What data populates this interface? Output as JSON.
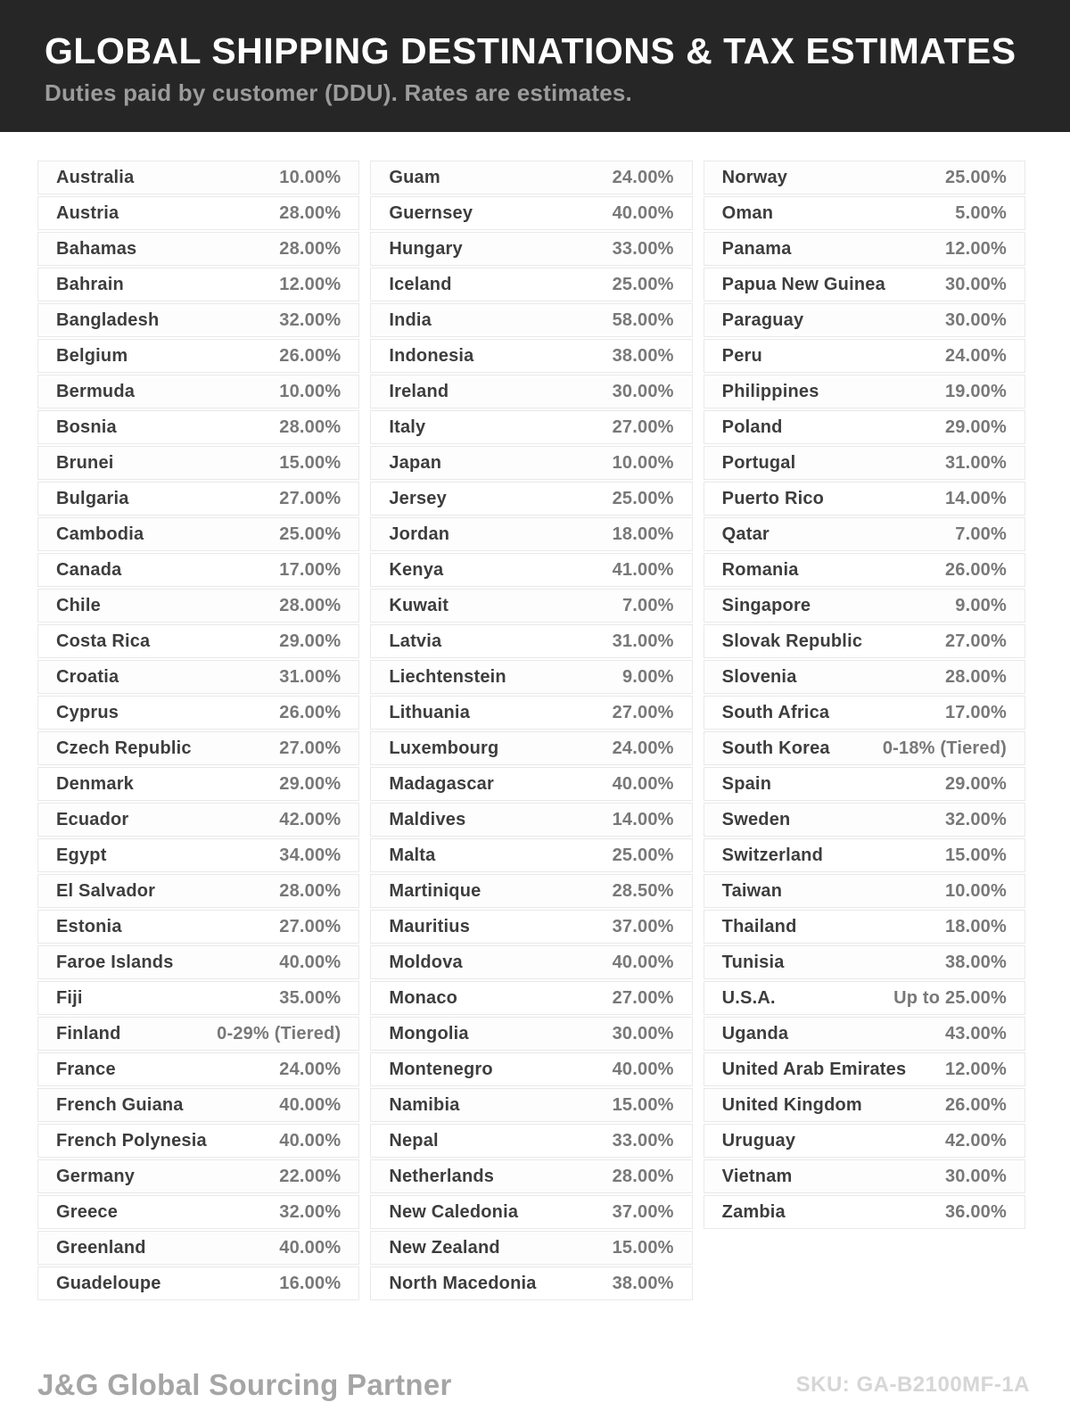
{
  "header": {
    "title": "GLOBAL SHIPPING DESTINATIONS & TAX ESTIMATES",
    "subtitle": "Duties paid by customer (DDU). Rates are estimates."
  },
  "columns": [
    {
      "rows": [
        {
          "country": "Australia",
          "rate": "10.00%"
        },
        {
          "country": "Austria",
          "rate": "28.00%"
        },
        {
          "country": "Bahamas",
          "rate": "28.00%"
        },
        {
          "country": "Bahrain",
          "rate": "12.00%"
        },
        {
          "country": "Bangladesh",
          "rate": "32.00%"
        },
        {
          "country": "Belgium",
          "rate": "26.00%"
        },
        {
          "country": "Bermuda",
          "rate": "10.00%"
        },
        {
          "country": "Bosnia",
          "rate": "28.00%"
        },
        {
          "country": "Brunei",
          "rate": "15.00%"
        },
        {
          "country": "Bulgaria",
          "rate": "27.00%"
        },
        {
          "country": "Cambodia",
          "rate": "25.00%"
        },
        {
          "country": "Canada",
          "rate": "17.00%"
        },
        {
          "country": "Chile",
          "rate": "28.00%"
        },
        {
          "country": "Costa Rica",
          "rate": "29.00%"
        },
        {
          "country": "Croatia",
          "rate": "31.00%"
        },
        {
          "country": "Cyprus",
          "rate": "26.00%"
        },
        {
          "country": "Czech Republic",
          "rate": "27.00%"
        },
        {
          "country": "Denmark",
          "rate": "29.00%"
        },
        {
          "country": "Ecuador",
          "rate": "42.00%"
        },
        {
          "country": "Egypt",
          "rate": "34.00%"
        },
        {
          "country": "El Salvador",
          "rate": "28.00%"
        },
        {
          "country": "Estonia",
          "rate": "27.00%"
        },
        {
          "country": "Faroe Islands",
          "rate": "40.00%"
        },
        {
          "country": "Fiji",
          "rate": "35.00%"
        },
        {
          "country": "Finland",
          "rate": "0-29% (Tiered)"
        },
        {
          "country": "France",
          "rate": "24.00%"
        },
        {
          "country": "French Guiana",
          "rate": "40.00%"
        },
        {
          "country": "French Polynesia",
          "rate": "40.00%"
        },
        {
          "country": "Germany",
          "rate": "22.00%"
        },
        {
          "country": "Greece",
          "rate": "32.00%"
        },
        {
          "country": "Greenland",
          "rate": "40.00%"
        },
        {
          "country": "Guadeloupe",
          "rate": "16.00%"
        }
      ]
    },
    {
      "rows": [
        {
          "country": "Guam",
          "rate": "24.00%"
        },
        {
          "country": "Guernsey",
          "rate": "40.00%"
        },
        {
          "country": "Hungary",
          "rate": "33.00%"
        },
        {
          "country": "Iceland",
          "rate": "25.00%"
        },
        {
          "country": "India",
          "rate": "58.00%"
        },
        {
          "country": "Indonesia",
          "rate": "38.00%"
        },
        {
          "country": "Ireland",
          "rate": "30.00%"
        },
        {
          "country": "Italy",
          "rate": "27.00%"
        },
        {
          "country": "Japan",
          "rate": "10.00%"
        },
        {
          "country": "Jersey",
          "rate": "25.00%"
        },
        {
          "country": "Jordan",
          "rate": "18.00%"
        },
        {
          "country": "Kenya",
          "rate": "41.00%"
        },
        {
          "country": "Kuwait",
          "rate": "7.00%"
        },
        {
          "country": "Latvia",
          "rate": "31.00%"
        },
        {
          "country": "Liechtenstein",
          "rate": "9.00%"
        },
        {
          "country": "Lithuania",
          "rate": "27.00%"
        },
        {
          "country": "Luxembourg",
          "rate": "24.00%"
        },
        {
          "country": "Madagascar",
          "rate": "40.00%"
        },
        {
          "country": "Maldives",
          "rate": "14.00%"
        },
        {
          "country": "Malta",
          "rate": "25.00%"
        },
        {
          "country": "Martinique",
          "rate": "28.50%"
        },
        {
          "country": "Mauritius",
          "rate": "37.00%"
        },
        {
          "country": "Moldova",
          "rate": "40.00%"
        },
        {
          "country": "Monaco",
          "rate": "27.00%"
        },
        {
          "country": "Mongolia",
          "rate": "30.00%"
        },
        {
          "country": "Montenegro",
          "rate": "40.00%"
        },
        {
          "country": "Namibia",
          "rate": "15.00%"
        },
        {
          "country": "Nepal",
          "rate": "33.00%"
        },
        {
          "country": "Netherlands",
          "rate": "28.00%"
        },
        {
          "country": "New Caledonia",
          "rate": "37.00%"
        },
        {
          "country": "New Zealand",
          "rate": "15.00%"
        },
        {
          "country": "North Macedonia",
          "rate": "38.00%"
        }
      ]
    },
    {
      "rows": [
        {
          "country": "Norway",
          "rate": "25.00%"
        },
        {
          "country": "Oman",
          "rate": "5.00%"
        },
        {
          "country": "Panama",
          "rate": "12.00%"
        },
        {
          "country": "Papua New Guinea",
          "rate": "30.00%"
        },
        {
          "country": "Paraguay",
          "rate": "30.00%"
        },
        {
          "country": "Peru",
          "rate": "24.00%"
        },
        {
          "country": "Philippines",
          "rate": "19.00%"
        },
        {
          "country": "Poland",
          "rate": "29.00%"
        },
        {
          "country": "Portugal",
          "rate": "31.00%"
        },
        {
          "country": "Puerto Rico",
          "rate": "14.00%"
        },
        {
          "country": "Qatar",
          "rate": "7.00%"
        },
        {
          "country": "Romania",
          "rate": "26.00%"
        },
        {
          "country": "Singapore",
          "rate": "9.00%"
        },
        {
          "country": "Slovak Republic",
          "rate": "27.00%"
        },
        {
          "country": "Slovenia",
          "rate": "28.00%"
        },
        {
          "country": "South Africa",
          "rate": "17.00%"
        },
        {
          "country": "South Korea",
          "rate": "0-18% (Tiered)"
        },
        {
          "country": "Spain",
          "rate": "29.00%"
        },
        {
          "country": "Sweden",
          "rate": "32.00%"
        },
        {
          "country": "Switzerland",
          "rate": "15.00%"
        },
        {
          "country": "Taiwan",
          "rate": "10.00%"
        },
        {
          "country": "Thailand",
          "rate": "18.00%"
        },
        {
          "country": "Tunisia",
          "rate": "38.00%"
        },
        {
          "country": "U.S.A.",
          "rate": "Up to 25.00%"
        },
        {
          "country": "Uganda",
          "rate": "43.00%"
        },
        {
          "country": "United Arab Emirates",
          "rate": "12.00%"
        },
        {
          "country": "United Kingdom",
          "rate": "26.00%"
        },
        {
          "country": "Uruguay",
          "rate": "42.00%"
        },
        {
          "country": "Vietnam",
          "rate": "30.00%"
        },
        {
          "country": "Zambia",
          "rate": "36.00%"
        }
      ]
    }
  ],
  "footer": {
    "brand": "J&G Global Sourcing Partner",
    "sku": "SKU: GA-B2100MF-1A"
  },
  "colors": {
    "header_background": "#262626",
    "title_text": "#ffffff",
    "subtitle_text": "#9c9c9c",
    "country_text": "#3d3d3d",
    "rate_text": "#787878",
    "row_border": "#e9e9e9",
    "brand_text": "#a5a5a5",
    "sku_text": "#d6d6d6"
  }
}
